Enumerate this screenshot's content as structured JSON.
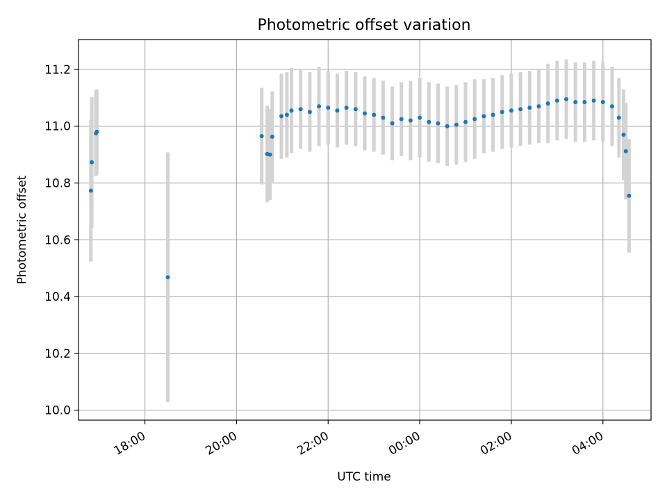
{
  "chart_data": {
    "type": "scatter",
    "title": "Photometric offset variation",
    "xlabel": "UTC time",
    "ylabel": "Photometric offset",
    "x_unit": "hours since 00:00 UTC (negative = previous evening)",
    "xlim": [
      -7.45,
      5.05
    ],
    "ylim": [
      9.965,
      11.305
    ],
    "grid": true,
    "x_ticks": [
      {
        "value": -6,
        "label": "18:00"
      },
      {
        "value": -4,
        "label": "20:00"
      },
      {
        "value": -2,
        "label": "22:00"
      },
      {
        "value": 0,
        "label": "00:00"
      },
      {
        "value": 2,
        "label": "02:00"
      },
      {
        "value": 4,
        "label": "04:00"
      }
    ],
    "y_ticks": [
      {
        "value": 10.0,
        "label": "10.0"
      },
      {
        "value": 10.2,
        "label": "10.2"
      },
      {
        "value": 10.4,
        "label": "10.4"
      },
      {
        "value": 10.6,
        "label": "10.6"
      },
      {
        "value": 10.8,
        "label": "10.8"
      },
      {
        "value": 11.0,
        "label": "11.0"
      },
      {
        "value": 11.2,
        "label": "11.2"
      }
    ],
    "colors": {
      "point": "#1f77b4",
      "errorbar": "#d3d3d3",
      "grid": "#b0b0b0"
    },
    "series": [
      {
        "points": [
          {
            "x": -7.18,
            "y": 10.773,
            "err": 0.25
          },
          {
            "x": -7.16,
            "y": 10.873,
            "err": 0.23
          },
          {
            "x": -7.07,
            "y": 10.975,
            "err": 0.15
          },
          {
            "x": -7.05,
            "y": 10.98,
            "err": 0.15
          },
          {
            "x": -5.5,
            "y": 10.468,
            "err": 0.44
          },
          {
            "x": -3.45,
            "y": 10.965,
            "err": 0.17
          },
          {
            "x": -3.33,
            "y": 10.902,
            "err": 0.17
          },
          {
            "x": -3.27,
            "y": 10.9,
            "err": 0.16
          },
          {
            "x": -3.22,
            "y": 10.963,
            "err": 0.16
          },
          {
            "x": -3.02,
            "y": 11.035,
            "err": 0.15
          },
          {
            "x": -2.9,
            "y": 11.04,
            "err": 0.15
          },
          {
            "x": -2.8,
            "y": 11.055,
            "err": 0.15
          },
          {
            "x": -2.6,
            "y": 11.06,
            "err": 0.14
          },
          {
            "x": -2.4,
            "y": 11.05,
            "err": 0.14
          },
          {
            "x": -2.2,
            "y": 11.07,
            "err": 0.14
          },
          {
            "x": -2.0,
            "y": 11.065,
            "err": 0.13
          },
          {
            "x": -1.8,
            "y": 11.055,
            "err": 0.13
          },
          {
            "x": -1.6,
            "y": 11.065,
            "err": 0.13
          },
          {
            "x": -1.4,
            "y": 11.06,
            "err": 0.13
          },
          {
            "x": -1.2,
            "y": 11.045,
            "err": 0.13
          },
          {
            "x": -1.0,
            "y": 11.04,
            "err": 0.13
          },
          {
            "x": -0.8,
            "y": 11.03,
            "err": 0.13
          },
          {
            "x": -0.6,
            "y": 11.01,
            "err": 0.13
          },
          {
            "x": -0.4,
            "y": 11.025,
            "err": 0.13
          },
          {
            "x": -0.2,
            "y": 11.02,
            "err": 0.14
          },
          {
            "x": 0.0,
            "y": 11.03,
            "err": 0.14
          },
          {
            "x": 0.2,
            "y": 11.015,
            "err": 0.14
          },
          {
            "x": 0.4,
            "y": 11.01,
            "err": 0.14
          },
          {
            "x": 0.6,
            "y": 11.0,
            "err": 0.14
          },
          {
            "x": 0.8,
            "y": 11.005,
            "err": 0.14
          },
          {
            "x": 1.0,
            "y": 11.015,
            "err": 0.14
          },
          {
            "x": 1.2,
            "y": 11.025,
            "err": 0.14
          },
          {
            "x": 1.4,
            "y": 11.035,
            "err": 0.13
          },
          {
            "x": 1.6,
            "y": 11.04,
            "err": 0.13
          },
          {
            "x": 1.8,
            "y": 11.05,
            "err": 0.13
          },
          {
            "x": 2.0,
            "y": 11.055,
            "err": 0.13
          },
          {
            "x": 2.2,
            "y": 11.06,
            "err": 0.13
          },
          {
            "x": 2.4,
            "y": 11.065,
            "err": 0.13
          },
          {
            "x": 2.6,
            "y": 11.07,
            "err": 0.13
          },
          {
            "x": 2.8,
            "y": 11.08,
            "err": 0.14
          },
          {
            "x": 3.0,
            "y": 11.09,
            "err": 0.14
          },
          {
            "x": 3.2,
            "y": 11.095,
            "err": 0.14
          },
          {
            "x": 3.4,
            "y": 11.085,
            "err": 0.14
          },
          {
            "x": 3.6,
            "y": 11.085,
            "err": 0.14
          },
          {
            "x": 3.8,
            "y": 11.09,
            "err": 0.14
          },
          {
            "x": 4.0,
            "y": 11.085,
            "err": 0.14
          },
          {
            "x": 4.2,
            "y": 11.07,
            "err": 0.14
          },
          {
            "x": 4.35,
            "y": 11.03,
            "err": 0.14
          },
          {
            "x": 4.45,
            "y": 10.97,
            "err": 0.16
          },
          {
            "x": 4.5,
            "y": 10.912,
            "err": 0.17
          },
          {
            "x": 4.57,
            "y": 10.755,
            "err": 0.2
          }
        ]
      }
    ]
  }
}
